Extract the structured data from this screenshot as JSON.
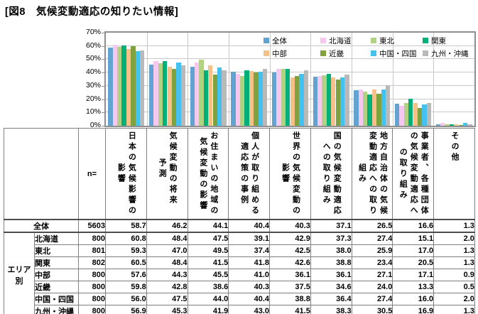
{
  "title": "[図8　気候変動適応の知りたい情報]",
  "chart_data": {
    "type": "bar",
    "title": "図8 気候変動適応の知りたい情報",
    "xlabel": "",
    "ylabel": "",
    "ylim": [
      0,
      70
    ],
    "ytick_step": 10,
    "ytick_suffix": "%",
    "grid": true,
    "legend_position": "top-right-overlay",
    "categories": [
      "日本の気候影響の\n影響",
      "気候変動の将来\n予測",
      "お住まいの地域の\n気候変動の影響",
      "個人が取り組める\n適応策の事例",
      "世界の気候変動の\n影響",
      "国の気候変動適応\nへの取り組み",
      "地方自治体の気候\n変動適応への取り\n組み",
      "事業者、各種団体\nの気候変動適応へ\nの取り組み",
      "その他"
    ],
    "series": [
      {
        "name": "全体",
        "color": "#62a3d2",
        "values": [
          58.7,
          46.2,
          44.1,
          40.4,
          40.3,
          37.1,
          26.5,
          16.6,
          1.3
        ]
      },
      {
        "name": "北海道",
        "color": "#f6c8f0",
        "values": [
          60.8,
          48.4,
          47.5,
          39.1,
          42.9,
          37.3,
          27.4,
          15.1,
          2.0
        ]
      },
      {
        "name": "東北",
        "color": "#b1d183",
        "values": [
          59.3,
          47.0,
          49.5,
          37.4,
          42.5,
          38.0,
          25.9,
          17.0,
          1.3
        ]
      },
      {
        "name": "関東",
        "color": "#00b078",
        "values": [
          60.5,
          48.4,
          41.5,
          41.8,
          42.6,
          38.8,
          23.4,
          20.5,
          1.3
        ]
      },
      {
        "name": "中部",
        "color": "#f5c189",
        "values": [
          57.6,
          44.3,
          45.5,
          41.0,
          36.1,
          36.1,
          27.1,
          17.1,
          0.9
        ]
      },
      {
        "name": "近畿",
        "color": "#7fa13e",
        "values": [
          59.8,
          42.8,
          38.6,
          40.3,
          37.5,
          34.6,
          24.0,
          13.3,
          0.5
        ]
      },
      {
        "name": "中国・四国",
        "color": "#45c1f0",
        "values": [
          56.0,
          47.5,
          44.0,
          40.4,
          38.8,
          36.4,
          27.4,
          16.0,
          2.0
        ]
      },
      {
        "name": "九州・沖縄",
        "color": "#b9b9b9",
        "values": [
          56.9,
          45.3,
          41.9,
          43.0,
          41.5,
          38.3,
          30.5,
          16.9,
          1.3
        ]
      }
    ]
  },
  "table": {
    "n_header": "n=",
    "group_label": "エリア別",
    "rows": [
      {
        "label": "全体",
        "n": "5603",
        "values": [
          "58.7",
          "46.2",
          "44.1",
          "40.4",
          "40.3",
          "37.1",
          "26.5",
          "16.6",
          "1.3"
        ]
      },
      {
        "label": "北海道",
        "n": "800",
        "values": [
          "60.8",
          "48.4",
          "47.5",
          "39.1",
          "42.9",
          "37.3",
          "27.4",
          "15.1",
          "2.0"
        ]
      },
      {
        "label": "東北",
        "n": "801",
        "values": [
          "59.3",
          "47.0",
          "49.5",
          "37.4",
          "42.5",
          "38.0",
          "25.9",
          "17.0",
          "1.3"
        ]
      },
      {
        "label": "関東",
        "n": "802",
        "values": [
          "60.5",
          "48.4",
          "41.5",
          "41.8",
          "42.6",
          "38.8",
          "23.4",
          "20.5",
          "1.3"
        ]
      },
      {
        "label": "中部",
        "n": "800",
        "values": [
          "57.6",
          "44.3",
          "45.5",
          "41.0",
          "36.1",
          "36.1",
          "27.1",
          "17.1",
          "0.9"
        ]
      },
      {
        "label": "近畿",
        "n": "800",
        "values": [
          "59.8",
          "42.8",
          "38.6",
          "40.3",
          "37.5",
          "34.6",
          "24.0",
          "13.3",
          "0.5"
        ]
      },
      {
        "label": "中国・四国",
        "n": "800",
        "values": [
          "56.0",
          "47.5",
          "44.0",
          "40.4",
          "38.8",
          "36.4",
          "27.4",
          "16.0",
          "2.0"
        ]
      },
      {
        "label": "九州・沖縄",
        "n": "800",
        "values": [
          "56.9",
          "45.3",
          "41.9",
          "43.0",
          "41.5",
          "38.3",
          "30.5",
          "16.9",
          "1.3"
        ]
      }
    ]
  }
}
